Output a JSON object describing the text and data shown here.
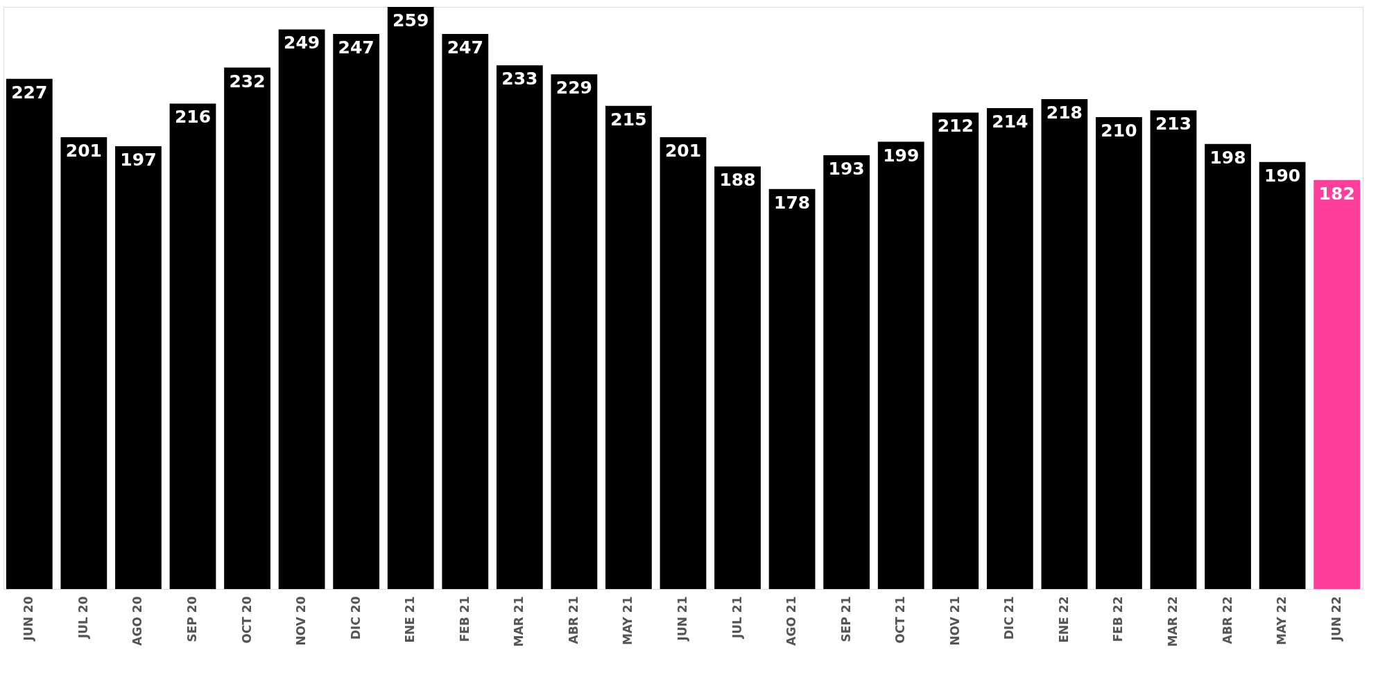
{
  "chart_data": {
    "type": "bar",
    "categories": [
      "JUN 20",
      "JUL 20",
      "AGO 20",
      "SEP 20",
      "OCT 20",
      "NOV 20",
      "DIC 20",
      "ENE 21",
      "FEB 21",
      "MAR 21",
      "ABR 21",
      "MAY 21",
      "JUN 21",
      "JUL 21",
      "AGO 21",
      "SEP 21",
      "OCT 21",
      "NOV 21",
      "DIC 21",
      "ENE 22",
      "FEB 22",
      "MAR 22",
      "ABR 22",
      "MAY 22",
      "JUN 22"
    ],
    "values": [
      227,
      201,
      197,
      216,
      232,
      249,
      247,
      259,
      247,
      233,
      229,
      215,
      201,
      188,
      178,
      193,
      199,
      212,
      214,
      218,
      210,
      213,
      198,
      190,
      182
    ],
    "colors": [
      "#000000",
      "#000000",
      "#000000",
      "#000000",
      "#000000",
      "#000000",
      "#000000",
      "#000000",
      "#000000",
      "#000000",
      "#000000",
      "#000000",
      "#000000",
      "#000000",
      "#000000",
      "#000000",
      "#000000",
      "#000000",
      "#000000",
      "#000000",
      "#000000",
      "#000000",
      "#000000",
      "#000000",
      "#ff3d9a"
    ],
    "data_labels": true
  }
}
